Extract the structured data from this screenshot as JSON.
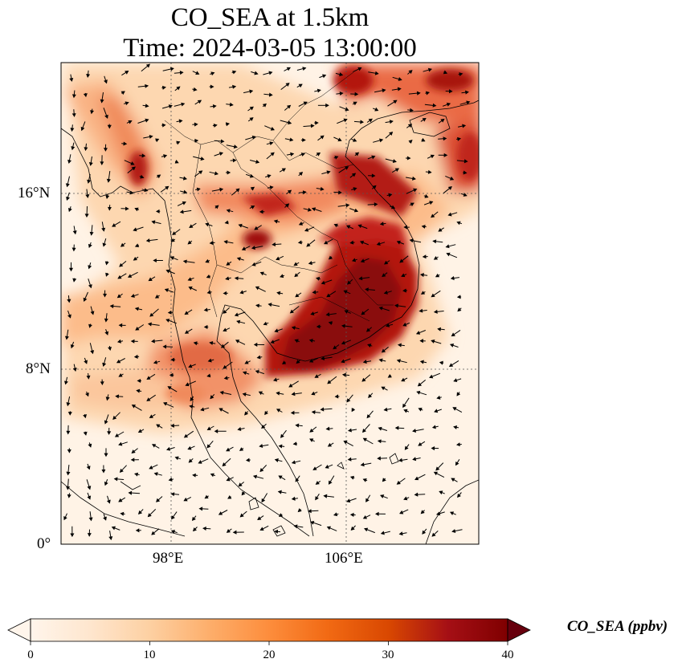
{
  "title": {
    "line1": "CO_SEA at 1.5km",
    "line2": "Time: 2024-03-05 13:00:00"
  },
  "map": {
    "variable": "CO_SEA",
    "level": "1.5km",
    "units": "ppbv",
    "lon_range": [
      93,
      112
    ],
    "lat_range": [
      0,
      22
    ],
    "lat_ticks": [
      {
        "value": 0,
        "label": "0°"
      },
      {
        "value": 8,
        "label": "8°N"
      },
      {
        "value": 16,
        "label": "16°N"
      }
    ],
    "lon_ticks": [
      {
        "value": 98,
        "label": "98°E"
      },
      {
        "value": 106,
        "label": "106°E"
      }
    ],
    "gridlines": true,
    "grid_style": "dotted",
    "features": [
      "coastlines",
      "country-borders",
      "wind-vectors"
    ]
  },
  "colorbar": {
    "label": "CO_SEA (ppbv)",
    "min": 0,
    "max": 40,
    "ticks": [
      "0",
      "10",
      "20",
      "30",
      "40"
    ],
    "extend": "both",
    "colormap": [
      "#fff5eb",
      "#fee6ce",
      "#fdd0a2",
      "#fdae6b",
      "#fd8d3c",
      "#f16913",
      "#d94801",
      "#a50f15",
      "#67000d"
    ]
  }
}
